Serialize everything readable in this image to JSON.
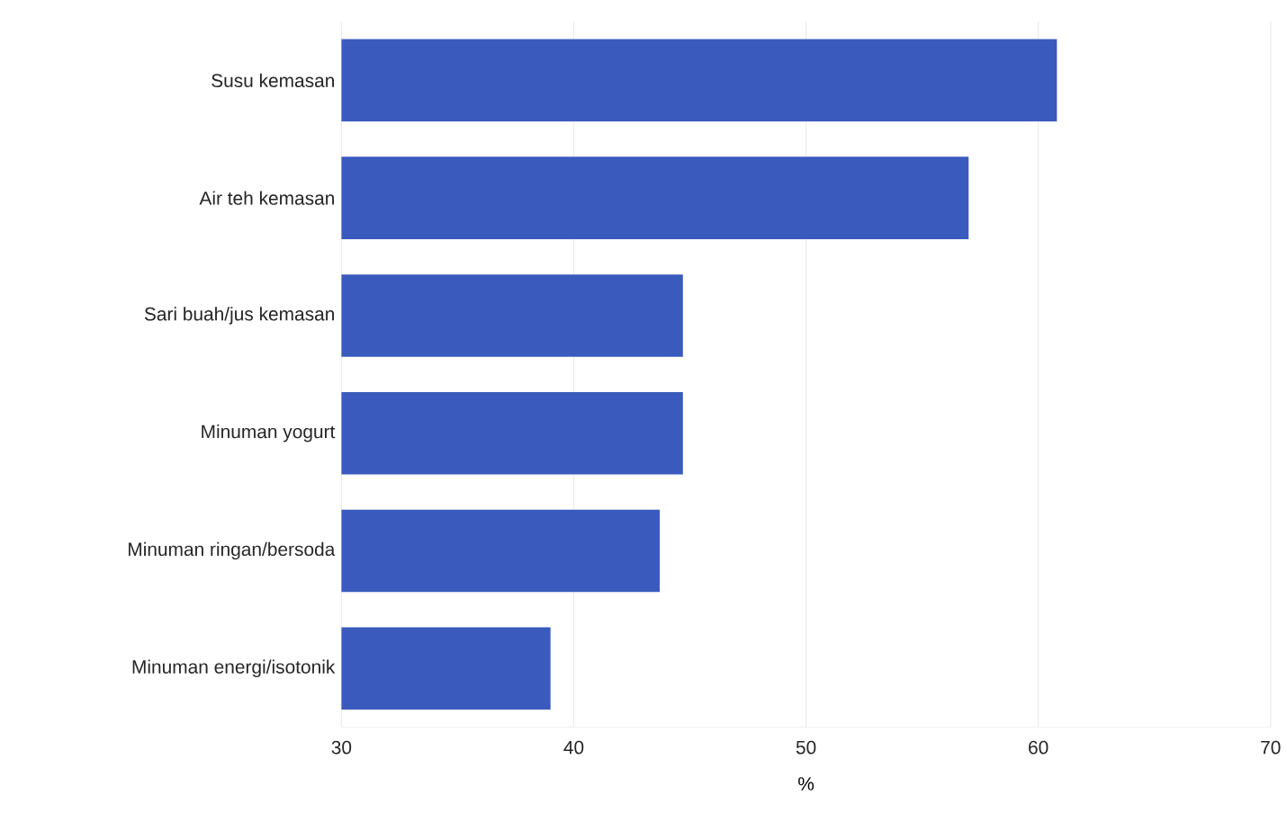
{
  "chart_data": {
    "type": "bar",
    "orientation": "horizontal",
    "xlabel": "%",
    "categories": [
      "Susu kemasan",
      "Air teh kemasan",
      "Sari buah/jus kemasan",
      "Minuman yogurt",
      "Minuman ringan/bersoda",
      "Minuman energi/isotonik"
    ],
    "values": [
      60.8,
      57.0,
      44.7,
      44.7,
      43.7,
      39.0
    ],
    "color": "#3a5bbd",
    "xlim": [
      30,
      70
    ],
    "xticks": [
      30,
      40,
      50,
      60,
      70
    ],
    "grid": "x"
  }
}
